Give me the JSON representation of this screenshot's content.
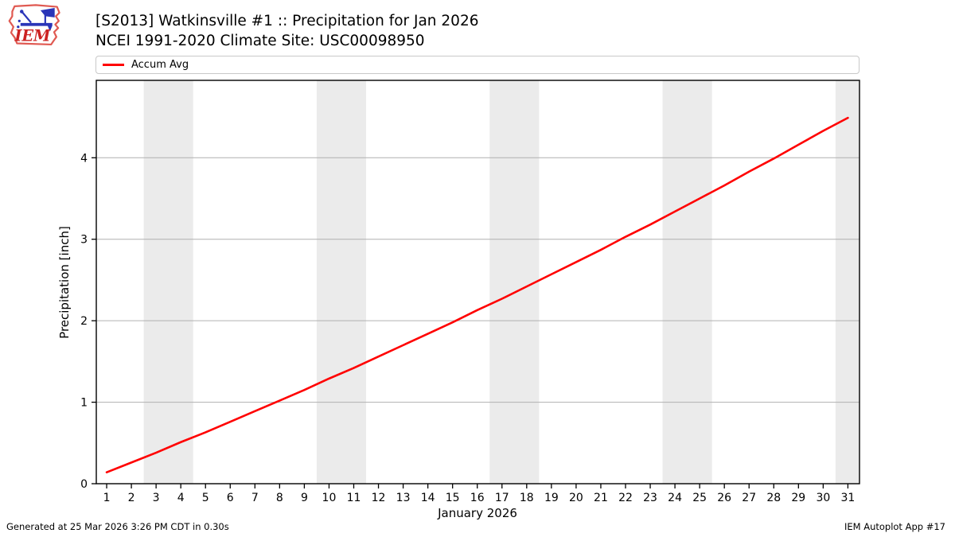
{
  "header": {
    "title_line1": "[S2013] Watkinsville #1 :: Precipitation for Jan 2026",
    "title_line2": "NCEI 1991-2020 Climate Site: USC00098950",
    "logo_text": "IEM"
  },
  "legend": {
    "items": [
      {
        "label": "Accum Avg",
        "color": "#ff0000"
      }
    ]
  },
  "footer": {
    "left": "Generated at 25 Mar 2026 3:26 PM CDT in 0.30s",
    "right": "IEM Autoplot App #17"
  },
  "chart_data": {
    "type": "line",
    "title": "[S2013] Watkinsville #1 :: Precipitation for Jan 2026",
    "subtitle": "NCEI 1991-2020 Climate Site: USC00098950",
    "xlabel": "January 2026",
    "ylabel": "Precipitation [inch]",
    "x": [
      1,
      2,
      3,
      4,
      5,
      6,
      7,
      8,
      9,
      10,
      11,
      12,
      13,
      14,
      15,
      16,
      17,
      18,
      19,
      20,
      21,
      22,
      23,
      24,
      25,
      26,
      27,
      28,
      29,
      30,
      31
    ],
    "series": [
      {
        "name": "Accum Avg",
        "color": "#ff0000",
        "values": [
          0.14,
          0.26,
          0.38,
          0.51,
          0.63,
          0.76,
          0.89,
          1.02,
          1.15,
          1.29,
          1.42,
          1.56,
          1.7,
          1.84,
          1.98,
          2.13,
          2.27,
          2.42,
          2.57,
          2.72,
          2.87,
          3.03,
          3.18,
          3.34,
          3.5,
          3.66,
          3.83,
          3.99,
          4.16,
          4.33,
          4.49
        ]
      }
    ],
    "xlim": [
      0.58,
      31.47
    ],
    "ylim": [
      0,
      4.95
    ],
    "yticks": [
      0,
      1,
      2,
      3,
      4
    ],
    "grid": "horizontal-on",
    "legend_position": "top",
    "shaded_day_bands": [
      [
        2.5,
        4.5
      ],
      [
        9.5,
        11.5
      ],
      [
        16.5,
        18.5
      ],
      [
        23.5,
        25.5
      ],
      [
        30.5,
        31.47
      ]
    ],
    "band_color": "#ebebeb",
    "grid_color": "#b0b0b0",
    "axis_color": "#000000"
  }
}
